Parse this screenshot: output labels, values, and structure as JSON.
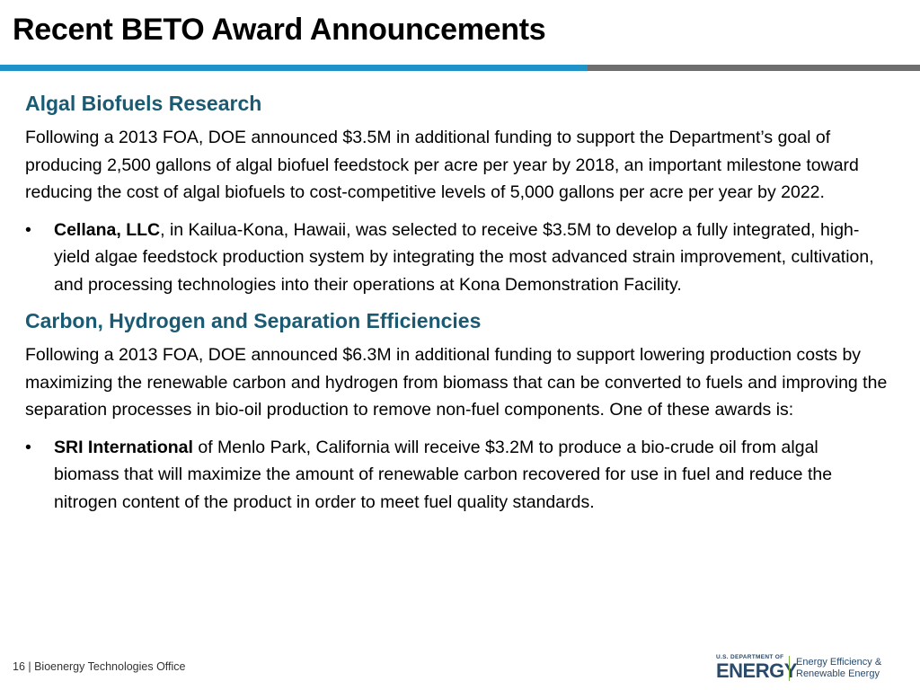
{
  "slide": {
    "title": "Recent BETO Award Announcements"
  },
  "sections": [
    {
      "heading": "Algal Biofuels Research",
      "paragraph": "Following a 2013 FOA, DOE announced $3.5M in additional funding to support the Department’s goal of producing 2,500 gallons of algal biofuel feedstock per acre per year by 2018, an important milestone toward reducing the cost of algal biofuels to cost-competitive levels of 5,000 gallons per acre per year by 2022.",
      "bullet": {
        "marker": "•",
        "bold": "Cellana, LLC",
        "text": ", in Kailua-Kona, Hawaii, was selected to receive $3.5M to develop a fully integrated, high-yield algae feedstock production system by integrating the most advanced strain improvement, cultivation, and processing technologies into their operations at Kona Demonstration Facility."
      }
    },
    {
      "heading": "Carbon, Hydrogen and Separation Efficiencies",
      "paragraph": "Following a 2013 FOA, DOE announced $6.3M in additional funding to support lowering production costs by maximizing the renewable carbon and hydrogen from biomass that can be converted to fuels and improving the separation processes in bio-oil production to remove non-fuel components.  One of these awards is:",
      "bullet": {
        "marker": "•",
        "bold": "SRI International",
        "text": " of Menlo Park, California will receive $3.2M to produce a bio-crude oil from algal biomass that will maximize the amount of renewable carbon recovered for use in fuel and reduce the nitrogen content of the product in order to meet fuel quality standards."
      }
    }
  ],
  "footer": {
    "page_label": "16 | Bioenergy Technologies Office"
  },
  "logo": {
    "dept_small": "U.S. DEPARTMENT OF",
    "dept_big": "ENERGY",
    "eere_line1": "Energy Efficiency &",
    "eere_line2": "Renewable Energy"
  },
  "colors": {
    "heading": "#1a5b73",
    "rule_blue": "#1f93c8",
    "rule_gray": "#6e6e6e",
    "logo_navy": "#2a4a6b",
    "logo_green": "#7bb241"
  }
}
